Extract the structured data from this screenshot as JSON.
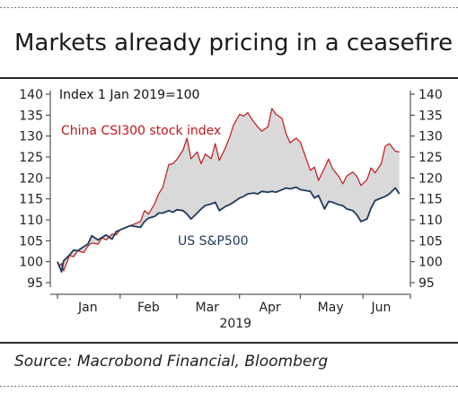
{
  "title": "Markets already pricing in a ceasefire",
  "source": "Source: Macrobond Financial, Bloomberg",
  "colors": {
    "china": "#c0171c",
    "us": "#1f3a5c",
    "fill": "#d9d9d9",
    "axis": "#333333"
  },
  "chart_data": {
    "type": "line",
    "annotation": "Index 1 Jan 2019=100",
    "xlabel": "2019",
    "ylim": [
      95,
      140
    ],
    "yticks": [
      95,
      100,
      105,
      110,
      115,
      120,
      125,
      130,
      135,
      140
    ],
    "xlim": [
      "2019-01-01",
      "2019-06-20"
    ],
    "month_ticks": [
      "2019-01-01",
      "2019-02-01",
      "2019-03-01",
      "2019-04-01",
      "2019-05-01",
      "2019-06-01",
      "2019-07-01"
    ],
    "month_labels": [
      {
        "label": "Jan",
        "date": "2019-01-16"
      },
      {
        "label": "Feb",
        "date": "2019-02-15"
      },
      {
        "label": "Mar",
        "date": "2019-03-16"
      },
      {
        "label": "Apr",
        "date": "2019-04-16"
      },
      {
        "label": "May",
        "date": "2019-05-16"
      },
      {
        "label": "Jun",
        "date": "2019-06-10"
      }
    ],
    "grid": false,
    "fill_between": true,
    "series": [
      {
        "name": "China CSI300 stock index",
        "points": [
          [
            "2019-01-01",
            100
          ],
          [
            "2019-01-02",
            99
          ],
          [
            "2019-01-03",
            99.6
          ],
          [
            "2019-01-04",
            97.8
          ],
          [
            "2019-01-07",
            101.5
          ],
          [
            "2019-01-09",
            101.2
          ],
          [
            "2019-01-11",
            102.6
          ],
          [
            "2019-01-14",
            102.2
          ],
          [
            "2019-01-16",
            103.7
          ],
          [
            "2019-01-18",
            104.5
          ],
          [
            "2019-01-21",
            104.2
          ],
          [
            "2019-01-23",
            105.7
          ],
          [
            "2019-01-25",
            105.2
          ],
          [
            "2019-01-28",
            106.6
          ],
          [
            "2019-01-30",
            106.4
          ],
          [
            "2019-02-01",
            107.6
          ],
          [
            "2019-02-06",
            108.6
          ],
          [
            "2019-02-11",
            109.6
          ],
          [
            "2019-02-13",
            112.2
          ],
          [
            "2019-02-15",
            111.4
          ],
          [
            "2019-02-18",
            113.8
          ],
          [
            "2019-02-20",
            116.2
          ],
          [
            "2019-02-22",
            117.7
          ],
          [
            "2019-02-25",
            123.2
          ],
          [
            "2019-02-27",
            123.4
          ],
          [
            "2019-03-01",
            124.4
          ],
          [
            "2019-03-04",
            126.6
          ],
          [
            "2019-03-06",
            129.5
          ],
          [
            "2019-03-08",
            124.6
          ],
          [
            "2019-03-11",
            126.2
          ],
          [
            "2019-03-13",
            123.4
          ],
          [
            "2019-03-15",
            125.7
          ],
          [
            "2019-03-18",
            124.6
          ],
          [
            "2019-03-20",
            128.2
          ],
          [
            "2019-03-22",
            124.2
          ],
          [
            "2019-03-25",
            127.2
          ],
          [
            "2019-03-27",
            129.6
          ],
          [
            "2019-03-29",
            132.6
          ],
          [
            "2019-04-01",
            135.2
          ],
          [
            "2019-04-03",
            134.8
          ],
          [
            "2019-04-05",
            135.6
          ],
          [
            "2019-04-08",
            133.4
          ],
          [
            "2019-04-10",
            132.2
          ],
          [
            "2019-04-12",
            131.2
          ],
          [
            "2019-04-15",
            132.2
          ],
          [
            "2019-04-17",
            136.6
          ],
          [
            "2019-04-19",
            135.2
          ],
          [
            "2019-04-22",
            134.2
          ],
          [
            "2019-04-24",
            130.5
          ],
          [
            "2019-04-26",
            128.4
          ],
          [
            "2019-04-29",
            129.5
          ],
          [
            "2019-05-01",
            128.6
          ],
          [
            "2019-05-06",
            121.8
          ],
          [
            "2019-05-08",
            122.6
          ],
          [
            "2019-05-10",
            119.4
          ],
          [
            "2019-05-13",
            122.4
          ],
          [
            "2019-05-15",
            124.5
          ],
          [
            "2019-05-17",
            122.2
          ],
          [
            "2019-05-20",
            120.4
          ],
          [
            "2019-05-22",
            118.6
          ],
          [
            "2019-05-24",
            120.5
          ],
          [
            "2019-05-27",
            121.4
          ],
          [
            "2019-05-29",
            120.4
          ],
          [
            "2019-05-31",
            118.2
          ],
          [
            "2019-06-03",
            119.6
          ],
          [
            "2019-06-05",
            122.4
          ],
          [
            "2019-06-07",
            121.2
          ],
          [
            "2019-06-10",
            123.4
          ],
          [
            "2019-06-12",
            127.6
          ],
          [
            "2019-06-14",
            128.2
          ],
          [
            "2019-06-17",
            126.4
          ],
          [
            "2019-06-19",
            126.2
          ]
        ]
      },
      {
        "name": "US S&P500",
        "points": [
          [
            "2019-01-01",
            100
          ],
          [
            "2019-01-02",
            98.8
          ],
          [
            "2019-01-03",
            97.6
          ],
          [
            "2019-01-04",
            100.2
          ],
          [
            "2019-01-07",
            101.6
          ],
          [
            "2019-01-09",
            102.8
          ],
          [
            "2019-01-11",
            102.6
          ],
          [
            "2019-01-14",
            103.6
          ],
          [
            "2019-01-16",
            104.2
          ],
          [
            "2019-01-18",
            106.2
          ],
          [
            "2019-01-21",
            105.2
          ],
          [
            "2019-01-23",
            105.8
          ],
          [
            "2019-01-25",
            106.4
          ],
          [
            "2019-01-28",
            105.4
          ],
          [
            "2019-01-30",
            107.2
          ],
          [
            "2019-02-01",
            107.6
          ],
          [
            "2019-02-06",
            108.6
          ],
          [
            "2019-02-11",
            108.2
          ],
          [
            "2019-02-13",
            109.6
          ],
          [
            "2019-02-15",
            110.4
          ],
          [
            "2019-02-18",
            110.8
          ],
          [
            "2019-02-20",
            111.6
          ],
          [
            "2019-02-22",
            111.6
          ],
          [
            "2019-02-25",
            112.2
          ],
          [
            "2019-02-27",
            111.8
          ],
          [
            "2019-03-01",
            112.4
          ],
          [
            "2019-03-04",
            112.2
          ],
          [
            "2019-03-06",
            111.4
          ],
          [
            "2019-03-08",
            110.2
          ],
          [
            "2019-03-11",
            111.6
          ],
          [
            "2019-03-13",
            112.6
          ],
          [
            "2019-03-15",
            113.4
          ],
          [
            "2019-03-18",
            113.8
          ],
          [
            "2019-03-20",
            114.2
          ],
          [
            "2019-03-22",
            112.2
          ],
          [
            "2019-03-25",
            113.2
          ],
          [
            "2019-03-27",
            113.6
          ],
          [
            "2019-03-29",
            114.2
          ],
          [
            "2019-04-01",
            115.2
          ],
          [
            "2019-04-03",
            115.6
          ],
          [
            "2019-04-05",
            116.2
          ],
          [
            "2019-04-08",
            116.4
          ],
          [
            "2019-04-10",
            116.2
          ],
          [
            "2019-04-12",
            116.8
          ],
          [
            "2019-04-15",
            116.6
          ],
          [
            "2019-04-17",
            116.8
          ],
          [
            "2019-04-19",
            116.6
          ],
          [
            "2019-04-22",
            117.2
          ],
          [
            "2019-04-24",
            117.6
          ],
          [
            "2019-04-26",
            117.4
          ],
          [
            "2019-04-29",
            117.8
          ],
          [
            "2019-05-01",
            117.2
          ],
          [
            "2019-05-06",
            116.8
          ],
          [
            "2019-05-08",
            115.2
          ],
          [
            "2019-05-10",
            115.8
          ],
          [
            "2019-05-13",
            112.6
          ],
          [
            "2019-05-15",
            114.4
          ],
          [
            "2019-05-17",
            114.2
          ],
          [
            "2019-05-20",
            113.6
          ],
          [
            "2019-05-22",
            113.4
          ],
          [
            "2019-05-24",
            112.6
          ],
          [
            "2019-05-27",
            112.2
          ],
          [
            "2019-05-29",
            111.2
          ],
          [
            "2019-05-31",
            109.6
          ],
          [
            "2019-06-03",
            110.2
          ],
          [
            "2019-06-05",
            112.8
          ],
          [
            "2019-06-07",
            114.6
          ],
          [
            "2019-06-10",
            115.2
          ],
          [
            "2019-06-12",
            115.6
          ],
          [
            "2019-06-14",
            116.2
          ],
          [
            "2019-06-17",
            117.6
          ],
          [
            "2019-06-19",
            116.2
          ]
        ]
      }
    ]
  }
}
